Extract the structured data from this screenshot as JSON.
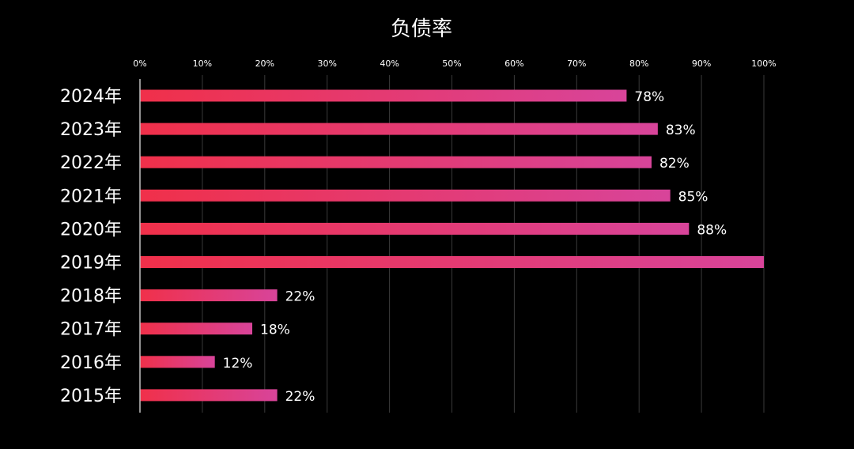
{
  "chart_data": {
    "type": "bar",
    "orientation": "horizontal",
    "title": "负债率",
    "xlabel": "",
    "ylabel": "",
    "xlim": [
      0,
      100
    ],
    "ticks": [
      "0%",
      "10%",
      "20%",
      "30%",
      "40%",
      "50%",
      "60%",
      "70%",
      "80%",
      "90%",
      "100%"
    ],
    "grid": true,
    "categories": [
      "2024年",
      "2023年",
      "2022年",
      "2021年",
      "2020年",
      "2019年",
      "2018年",
      "2017年",
      "2016年",
      "2015年"
    ],
    "values": [
      78,
      83,
      82,
      85,
      88,
      100,
      22,
      18,
      12,
      22
    ],
    "value_labels": [
      "78%",
      "83%",
      "82%",
      "85%",
      "88%",
      "",
      "22%",
      "18%",
      "12%",
      "22%"
    ],
    "colors": {
      "background": "#000000",
      "bar_start": "#f0304a",
      "bar_end": "#d8449a",
      "grid": "#3a3a3a",
      "axis": "#bfbfbf",
      "text": "#ffffff"
    }
  }
}
